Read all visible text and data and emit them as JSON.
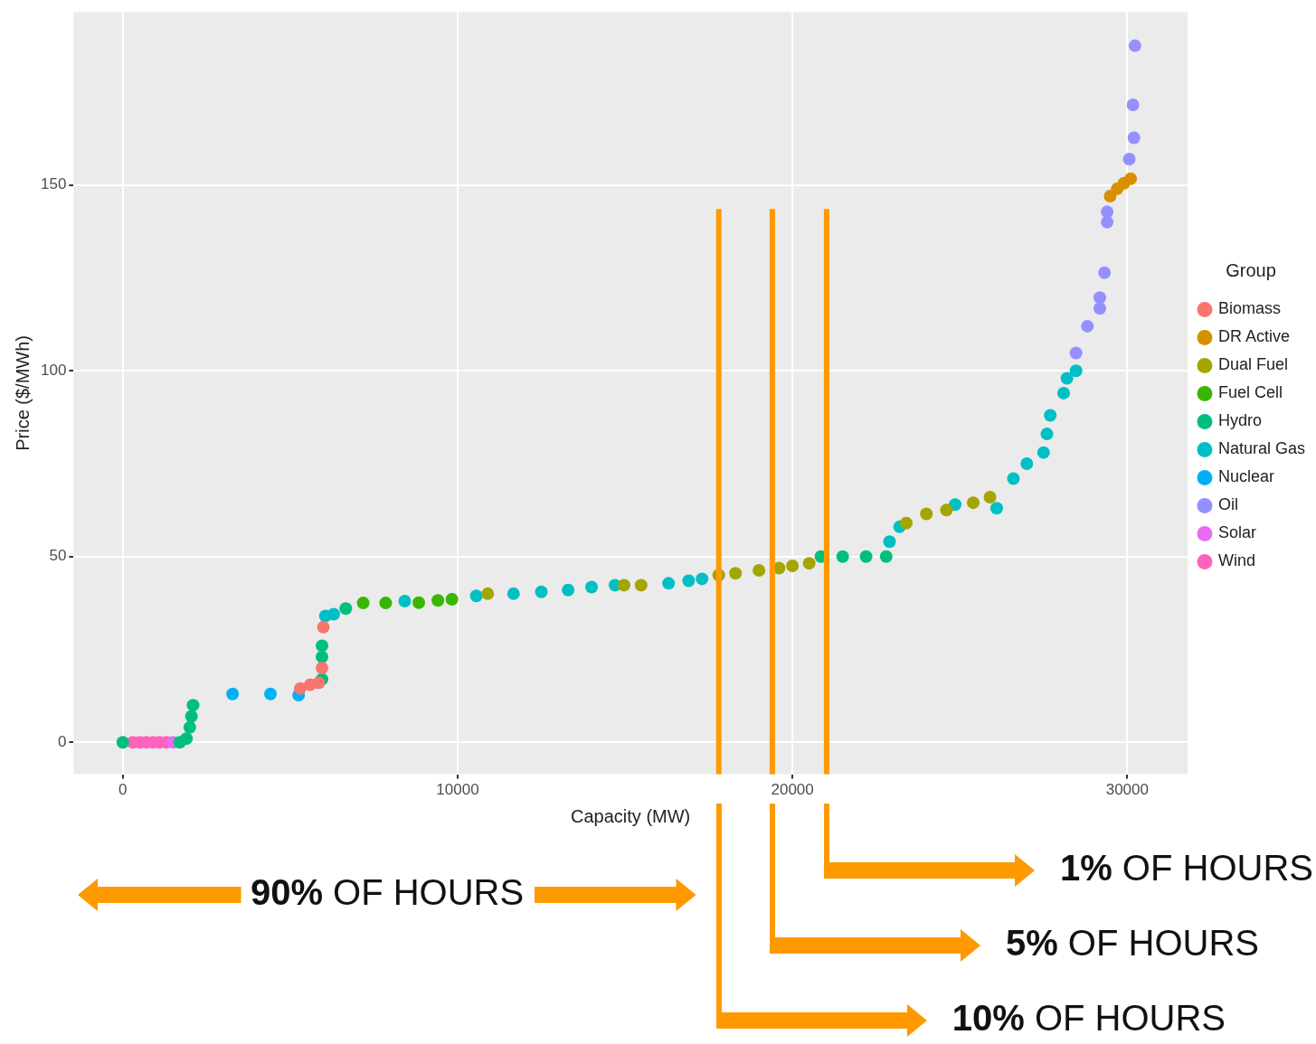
{
  "chart_data": {
    "type": "scatter",
    "xlabel": "Capacity (MW)",
    "ylabel": "Price ($/MWh)",
    "legend_title": "Group",
    "legend": "right",
    "grid": true,
    "marker": "circle",
    "xlim": [
      -1470,
      31800
    ],
    "ylim": [
      -8.6,
      196.6
    ],
    "xticks": [
      0,
      10000,
      20000,
      30000
    ],
    "yticks": [
      0,
      50,
      100,
      150
    ],
    "series": [
      {
        "name": "Biomass",
        "color": "#f8766d",
        "x": [
          5300,
          5600,
          5850,
          5950,
          5990
        ],
        "values": [
          14.5,
          15.5,
          16,
          20,
          31
        ]
      },
      {
        "name": "DR Active",
        "color": "#d89000",
        "x": [
          29490,
          29700,
          29900,
          30100
        ],
        "values": [
          147,
          149,
          150.5,
          151.7
        ]
      },
      {
        "name": "Dual Fuel",
        "color": "#a3a500",
        "x": [
          10900,
          14970,
          15480,
          17800,
          18300,
          19000,
          19600,
          20000,
          20500,
          23400,
          24000,
          24600,
          25400,
          25900
        ],
        "values": [
          40,
          42.3,
          42.3,
          45,
          45.5,
          46.3,
          46.9,
          47.5,
          48.2,
          59,
          61.5,
          62.5,
          64.5,
          66
        ]
      },
      {
        "name": "Fuel Cell",
        "color": "#39b600",
        "x": [
          7180,
          7850,
          8840,
          9410,
          9830
        ],
        "values": [
          37.5,
          37.5,
          37.6,
          38.2,
          38.5
        ]
      },
      {
        "name": "Hydro",
        "color": "#00bf7d",
        "x": [
          0,
          1700,
          1900,
          2000,
          2050,
          2100,
          5950,
          5950,
          5950,
          6660,
          20850,
          21500,
          22200,
          22800
        ],
        "values": [
          0,
          0,
          1,
          4,
          7,
          10,
          17,
          23,
          26,
          36,
          50,
          50,
          50,
          50
        ]
      },
      {
        "name": "Natural Gas",
        "color": "#00bfc4",
        "x": [
          6050,
          6300,
          8420,
          10560,
          11670,
          12500,
          13300,
          14000,
          14700,
          16300,
          16900,
          17300,
          22900,
          23200,
          24860,
          26100,
          26600,
          27000,
          27500,
          27600,
          27700,
          28100,
          28200,
          28470
        ],
        "values": [
          34,
          34.5,
          38,
          39.4,
          40,
          40.5,
          41,
          41.8,
          42.3,
          42.8,
          43.5,
          44,
          54,
          58,
          64,
          63,
          71,
          75,
          78,
          83,
          88,
          94,
          98,
          100
        ]
      },
      {
        "name": "Nuclear",
        "color": "#00b0f6",
        "x": [
          3280,
          4410,
          5250
        ],
        "values": [
          13,
          13,
          12.7
        ]
      },
      {
        "name": "Oil",
        "color": "#9590ff",
        "x": [
          28470,
          28810,
          29180,
          29180,
          29320,
          29400,
          29400,
          30060,
          30200,
          30170,
          30230
        ],
        "values": [
          104.8,
          112,
          116.8,
          119.7,
          126.4,
          140,
          142.8,
          157,
          162.7,
          171.6,
          187.5
        ]
      },
      {
        "name": "Solar",
        "color": "#e76bf3",
        "x": [
          1500
        ],
        "values": [
          0
        ]
      },
      {
        "name": "Wind",
        "color": "#ff62bc",
        "x": [
          300,
          500,
          700,
          900,
          1100,
          1300
        ],
        "values": [
          0,
          0,
          0,
          0,
          0,
          0
        ]
      }
    ],
    "ref_lines": [
      {
        "axis": "x",
        "value": 21020,
        "color": "#ff9900"
      },
      {
        "axis": "x",
        "value": 19400,
        "color": "#ff9900"
      },
      {
        "axis": "x",
        "value": 17800,
        "color": "#ff9900"
      }
    ],
    "annotations": [
      "90% OF HOURS",
      "1% OF HOURS",
      "5% OF HOURS",
      "10% OF HOURS"
    ]
  }
}
